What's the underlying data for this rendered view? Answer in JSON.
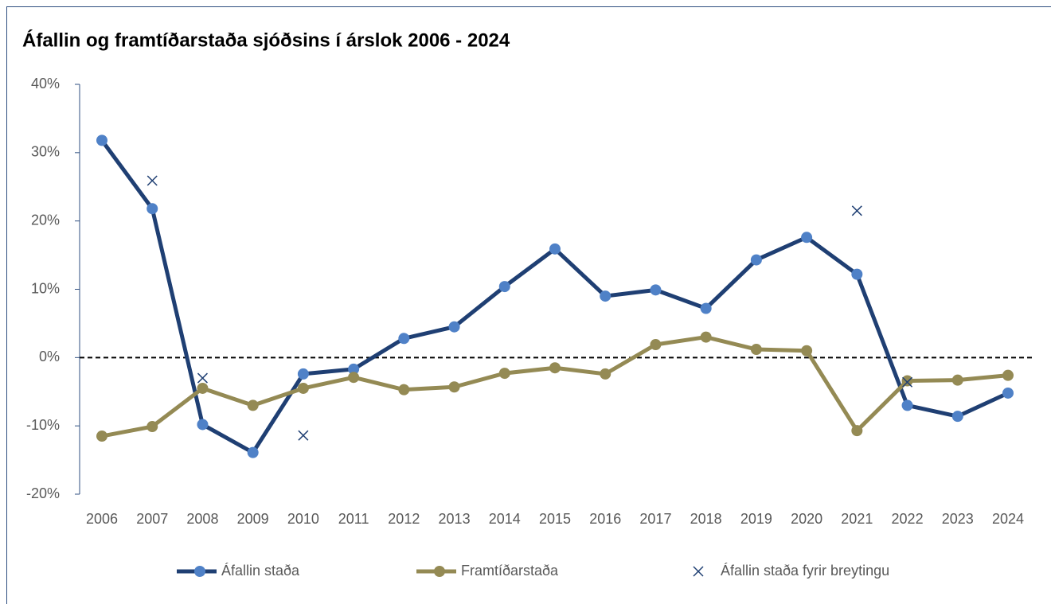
{
  "chart_data": {
    "type": "line",
    "title": "Áfallin og framtíðarstaða sjóðsins í árslok 2006 - 2024",
    "categories": [
      "2006",
      "2007",
      "2008",
      "2009",
      "2010",
      "2011",
      "2012",
      "2013",
      "2014",
      "2015",
      "2016",
      "2017",
      "2018",
      "2019",
      "2020",
      "2021",
      "2022",
      "2023",
      "2024"
    ],
    "series": [
      {
        "name": "Áfallin staða",
        "color": "#1f3f73",
        "marker_color": "#4f81c7",
        "marker": "circle",
        "values": [
          31.8,
          21.8,
          -9.8,
          -13.9,
          -2.4,
          -1.7,
          2.8,
          4.5,
          10.4,
          15.9,
          9.0,
          9.9,
          7.2,
          14.3,
          17.6,
          12.2,
          -7.0,
          -8.6,
          -5.2
        ]
      },
      {
        "name": "Framtíðarstaða",
        "color": "#948a54",
        "marker_color": "#948a54",
        "marker": "circle",
        "values": [
          -11.5,
          -10.1,
          -4.5,
          -7.0,
          -4.5,
          -2.9,
          -4.7,
          -4.3,
          -2.3,
          -1.5,
          -2.4,
          1.9,
          3.0,
          1.2,
          1.0,
          -10.7,
          -3.4,
          -3.3,
          -2.6
        ]
      },
      {
        "name": "Áfallin staða fyrir breytingu",
        "color": "#1f3f73",
        "marker_color": "#1f3f73",
        "marker": "x",
        "line": false,
        "values": [
          null,
          25.9,
          -3.0,
          null,
          -11.4,
          null,
          null,
          null,
          null,
          null,
          null,
          null,
          null,
          null,
          null,
          21.5,
          -3.6,
          null,
          null
        ]
      }
    ],
    "ylim": [
      -20,
      40
    ],
    "yticks": [
      {
        "value": -20,
        "label": "-20%"
      },
      {
        "value": -10,
        "label": "-10%"
      },
      {
        "value": 0,
        "label": "0%"
      },
      {
        "value": 10,
        "label": "10%"
      },
      {
        "value": 20,
        "label": "20%"
      },
      {
        "value": 30,
        "label": "30%"
      },
      {
        "value": 40,
        "label": "40%"
      }
    ],
    "legend": "bottom"
  }
}
